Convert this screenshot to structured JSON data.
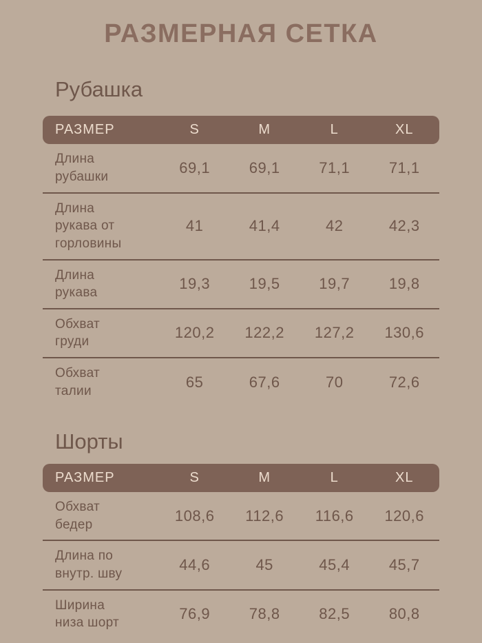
{
  "page": {
    "title": "РАЗМЕРНАЯ СЕТКА"
  },
  "colors": {
    "background": "#bcab9b",
    "header_bar": "#7e6256",
    "header_text": "#ecdccd",
    "title_text": "#8a6d60",
    "body_text": "#6f574b",
    "divider_line": "#6f574b"
  },
  "tables": [
    {
      "section": "Рубашка",
      "header": {
        "label": "РАЗМЕР",
        "sizes": [
          "S",
          "M",
          "L",
          "XL"
        ]
      },
      "rows": [
        {
          "label": "Длина рубашки",
          "values": [
            "69,1",
            "69,1",
            "71,1",
            "71,1"
          ]
        },
        {
          "label": "Длина рукава от горловины",
          "values": [
            "41",
            "41,4",
            "42",
            "42,3"
          ]
        },
        {
          "label": "Длина рукава",
          "values": [
            "19,3",
            "19,5",
            "19,7",
            "19,8"
          ]
        },
        {
          "label": "Обхват груди",
          "values": [
            "120,2",
            "122,2",
            "127,2",
            "130,6"
          ]
        },
        {
          "label": "Обхват талии",
          "values": [
            "65",
            "67,6",
            "70",
            "72,6"
          ]
        }
      ]
    },
    {
      "section": "Шорты",
      "header": {
        "label": "РАЗМЕР",
        "sizes": [
          "S",
          "M",
          "L",
          "XL"
        ]
      },
      "rows": [
        {
          "label": "Обхват бедер",
          "values": [
            "108,6",
            "112,6",
            "116,6",
            "120,6"
          ]
        },
        {
          "label": "Длина по внутр. шву",
          "values": [
            "44,6",
            "45",
            "45,4",
            "45,7"
          ]
        },
        {
          "label": "Ширина низа шорт",
          "values": [
            "76,9",
            "78,8",
            "82,5",
            "80,8"
          ]
        }
      ]
    }
  ],
  "chart_data": [
    {
      "type": "table",
      "title": "Рубашка",
      "columns": [
        "РАЗМЕР",
        "S",
        "M",
        "L",
        "XL"
      ],
      "rows": [
        {
          "label": "Длина рубашки",
          "values": [
            69.1,
            69.1,
            71.1,
            71.1
          ]
        },
        {
          "label": "Длина рукава от горловины",
          "values": [
            41,
            41.4,
            42,
            42.3
          ]
        },
        {
          "label": "Длина рукава",
          "values": [
            19.3,
            19.5,
            19.7,
            19.8
          ]
        },
        {
          "label": "Обхват груди",
          "values": [
            120.2,
            122.2,
            127.2,
            130.6
          ]
        },
        {
          "label": "Обхват талии",
          "values": [
            65,
            67.6,
            70,
            72.6
          ]
        }
      ]
    },
    {
      "type": "table",
      "title": "Шорты",
      "columns": [
        "РАЗМЕР",
        "S",
        "M",
        "L",
        "XL"
      ],
      "rows": [
        {
          "label": "Обхват бедер",
          "values": [
            108.6,
            112.6,
            116.6,
            120.6
          ]
        },
        {
          "label": "Длина по внутр. шву",
          "values": [
            44.6,
            45,
            45.4,
            45.7
          ]
        },
        {
          "label": "Ширина низа шорт",
          "values": [
            76.9,
            78.8,
            82.5,
            80.8
          ]
        }
      ]
    }
  ]
}
